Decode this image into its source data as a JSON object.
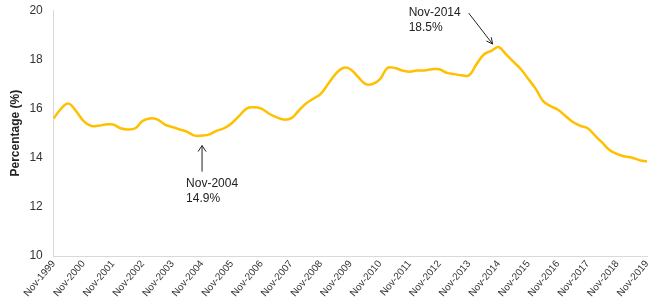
{
  "chart_data": {
    "type": "line",
    "y_label": "Percentage (%)",
    "categories": [
      "Nov-1999",
      null,
      null,
      null,
      "Nov-2000",
      null,
      null,
      null,
      "Nov-2001",
      null,
      null,
      null,
      "Nov-2002",
      null,
      null,
      null,
      "Nov-2003",
      null,
      null,
      null,
      "Nov-2004",
      null,
      null,
      null,
      "Nov-2005",
      null,
      null,
      null,
      "Nov-2006",
      null,
      null,
      null,
      "Nov-2007",
      null,
      null,
      null,
      "Nov-2008",
      null,
      null,
      null,
      "Nov-2009",
      null,
      null,
      null,
      "Nov-2010",
      null,
      null,
      null,
      "Nov-2011",
      null,
      null,
      null,
      "Nov-2012",
      null,
      null,
      null,
      "Nov-2013",
      null,
      null,
      null,
      "Nov-2014",
      null,
      null,
      null,
      "Nov-2015",
      null,
      null,
      null,
      "Nov-2016",
      null,
      null,
      null,
      "Nov-2017",
      null,
      null,
      null,
      "Nov-2018",
      null,
      null,
      null,
      "Nov-2019"
    ],
    "values": [
      15.6,
      16.0,
      16.2,
      15.9,
      15.5,
      15.3,
      15.3,
      15.35,
      15.35,
      15.2,
      15.15,
      15.2,
      15.5,
      15.6,
      15.55,
      15.35,
      15.25,
      15.15,
      15.05,
      14.9,
      14.9,
      14.95,
      15.1,
      15.2,
      15.4,
      15.7,
      16.0,
      16.05,
      16.0,
      15.8,
      15.65,
      15.55,
      15.6,
      15.9,
      16.2,
      16.4,
      16.6,
      17.0,
      17.4,
      17.65,
      17.6,
      17.3,
      17.0,
      17.0,
      17.2,
      17.65,
      17.65,
      17.55,
      17.5,
      17.55,
      17.55,
      17.6,
      17.6,
      17.45,
      17.4,
      17.35,
      17.35,
      17.8,
      18.2,
      18.35,
      18.5,
      18.2,
      17.9,
      17.6,
      17.2,
      16.8,
      16.3,
      16.1,
      15.95,
      15.7,
      15.45,
      15.3,
      15.2,
      14.9,
      14.6,
      14.3,
      14.15,
      14.05,
      14.0,
      13.9,
      13.85
    ],
    "color": "#FFC000",
    "ylim": [
      10,
      20
    ],
    "yticks": [
      10,
      12,
      14,
      16,
      18,
      20
    ],
    "grid": false,
    "annotations": [
      {
        "text": [
          "Nov-2004",
          "14.9%"
        ],
        "x": "Nov-2004",
        "y": 14.9
      },
      {
        "text": [
          "Nov-2014",
          "18.5%"
        ],
        "x": "Nov-2014",
        "y": 18.5
      }
    ]
  }
}
